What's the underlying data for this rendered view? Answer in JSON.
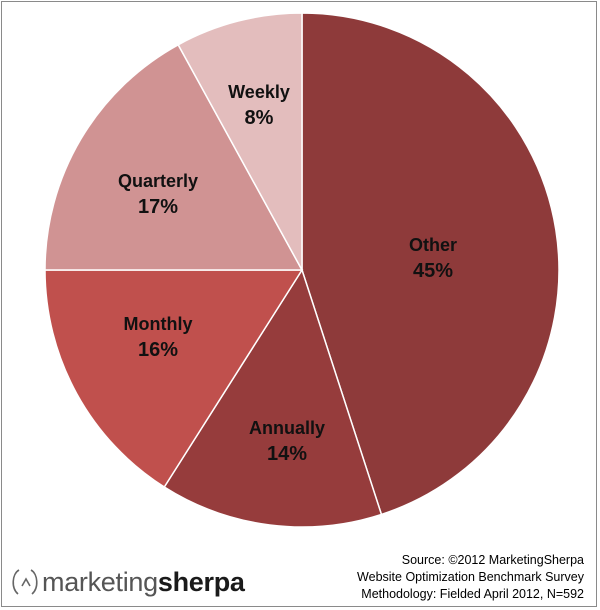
{
  "chart_data": {
    "type": "pie",
    "slices": [
      {
        "label": "Other",
        "value": 45,
        "display": "45%",
        "color": "#8e3a3a"
      },
      {
        "label": "Annually",
        "value": 14,
        "display": "14%",
        "color": "#963c3c"
      },
      {
        "label": "Monthly",
        "value": 16,
        "display": "16%",
        "color": "#c0504d"
      },
      {
        "label": "Quarterly",
        "value": 17,
        "display": "17%",
        "color": "#d09393"
      },
      {
        "label": "Weekly",
        "value": 8,
        "display": "8%",
        "color": "#e3bdbd"
      }
    ],
    "start_angle_deg": 0,
    "direction": "clockwise",
    "slice_border_color": "#ffffff"
  },
  "footer": {
    "logo_light": "marketing",
    "logo_bold": "sherpa",
    "source_lines": [
      "Source: ©2012 MarketingSherpa",
      "Website Optimization Benchmark Survey",
      "Methodology: Fielded April 2012, N=592"
    ]
  }
}
